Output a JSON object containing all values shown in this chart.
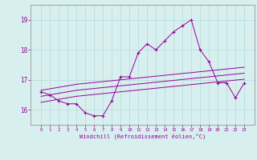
{
  "xlabel": "Windchill (Refroidissement éolien,°C)",
  "bg_color": "#d8efef",
  "grid_color": "#b8dede",
  "line_color": "#990099",
  "x": [
    0,
    1,
    2,
    3,
    4,
    5,
    6,
    7,
    8,
    9,
    10,
    11,
    12,
    13,
    14,
    15,
    16,
    17,
    18,
    19,
    20,
    21,
    22,
    23
  ],
  "y_main": [
    16.6,
    16.5,
    16.3,
    16.2,
    16.2,
    15.9,
    15.8,
    15.8,
    16.3,
    17.1,
    17.1,
    17.9,
    18.2,
    18.0,
    18.3,
    18.6,
    18.8,
    19.0,
    18.0,
    17.6,
    16.9,
    16.9,
    16.4,
    16.9
  ],
  "y_reg1": [
    16.65,
    16.7,
    16.75,
    16.8,
    16.85,
    16.88,
    16.91,
    16.94,
    16.97,
    17.0,
    17.03,
    17.06,
    17.09,
    17.12,
    17.15,
    17.18,
    17.21,
    17.24,
    17.27,
    17.3,
    17.33,
    17.36,
    17.39,
    17.42
  ],
  "y_reg2": [
    16.45,
    16.5,
    16.55,
    16.6,
    16.65,
    16.68,
    16.71,
    16.74,
    16.77,
    16.8,
    16.83,
    16.86,
    16.89,
    16.92,
    16.95,
    16.98,
    17.01,
    17.04,
    17.07,
    17.1,
    17.13,
    17.16,
    17.19,
    17.22
  ],
  "y_reg3": [
    16.25,
    16.3,
    16.35,
    16.4,
    16.45,
    16.48,
    16.51,
    16.54,
    16.57,
    16.6,
    16.63,
    16.66,
    16.69,
    16.72,
    16.75,
    16.78,
    16.81,
    16.84,
    16.87,
    16.9,
    16.93,
    16.96,
    16.99,
    17.02
  ],
  "ylim": [
    15.5,
    19.5
  ],
  "yticks": [
    16,
    17,
    18,
    19
  ],
  "xticks": [
    0,
    1,
    2,
    3,
    4,
    5,
    6,
    7,
    8,
    9,
    10,
    11,
    12,
    13,
    14,
    15,
    16,
    17,
    18,
    19,
    20,
    21,
    22,
    23
  ]
}
